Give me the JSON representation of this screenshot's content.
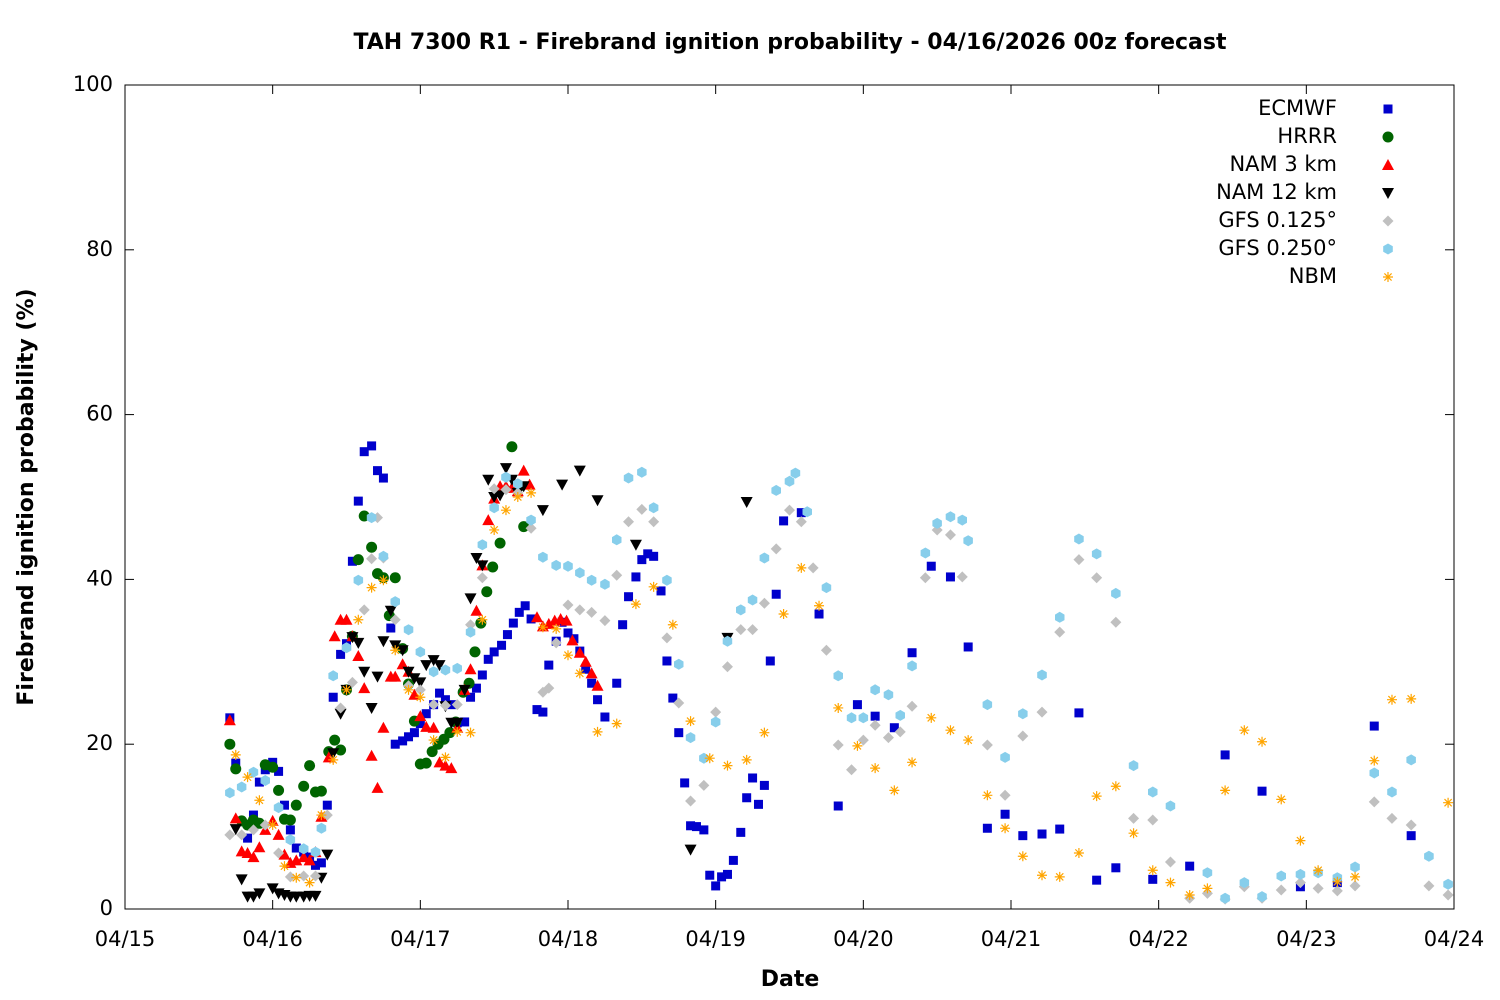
{
  "chart_data": {
    "type": "scatter",
    "title": "TAH 7300 R1 - Firebrand ignition probability - 04/16/2026 00z forecast",
    "x_label": "Date",
    "y_label": "Firebrand ignition probability (%)",
    "xlim": [
      0,
      9
    ],
    "ylim": [
      0,
      100
    ],
    "xticks": [
      {
        "value": 0,
        "label": "04/15"
      },
      {
        "value": 1,
        "label": "04/16"
      },
      {
        "value": 2,
        "label": "04/17"
      },
      {
        "value": 3,
        "label": "04/18"
      },
      {
        "value": 4,
        "label": "04/19"
      },
      {
        "value": 5,
        "label": "04/20"
      },
      {
        "value": 6,
        "label": "04/21"
      },
      {
        "value": 7,
        "label": "04/22"
      },
      {
        "value": 8,
        "label": "04/23"
      },
      {
        "value": 9,
        "label": "04/24"
      }
    ],
    "yticks": [
      0,
      20,
      40,
      60,
      80,
      100
    ],
    "grid": false,
    "legend": "top-right",
    "series": [
      {
        "name": "ECMWF",
        "color": "#0000cc",
        "marker": "square",
        "x": [
          0.71,
          0.75,
          0.83,
          0.87,
          0.91,
          0.95,
          1.0,
          1.04,
          1.08,
          1.12,
          1.16,
          1.21,
          1.25,
          1.29,
          1.33,
          1.37,
          1.41,
          1.46,
          1.5,
          1.54,
          1.58,
          1.62,
          1.67,
          1.71,
          1.75,
          1.8,
          1.83,
          1.88,
          1.92,
          1.96,
          2.0,
          2.04,
          2.09,
          2.13,
          2.17,
          2.21,
          2.25,
          2.3,
          2.34,
          2.38,
          2.42,
          2.46,
          2.5,
          2.55,
          2.59,
          2.63,
          2.67,
          2.71,
          2.75,
          2.79,
          2.83,
          2.87,
          2.92,
          2.96,
          3.0,
          3.04,
          3.08,
          3.12,
          3.16,
          3.2,
          3.25,
          3.33,
          3.37,
          3.41,
          3.46,
          3.5,
          3.54,
          3.58,
          3.63,
          3.67,
          3.71,
          3.75,
          3.79,
          3.83,
          3.87,
          3.92,
          3.96,
          4.0,
          4.04,
          4.08,
          4.12,
          4.17,
          4.21,
          4.25,
          4.29,
          4.33,
          4.37,
          4.41,
          4.46,
          4.58,
          4.7,
          4.83,
          4.96,
          5.08,
          5.21,
          5.33,
          5.46,
          5.59,
          5.71,
          5.84,
          5.96,
          6.08,
          6.21,
          6.33,
          6.46,
          6.58,
          6.71,
          6.96,
          7.21,
          7.45,
          7.7,
          7.96,
          8.21,
          8.46,
          8.71
        ],
        "values": [
          23.2,
          17.7,
          8.6,
          11.4,
          15.4,
          16.9,
          17.8,
          16.7,
          12.6,
          9.6,
          7.4,
          6.9,
          6.3,
          5.3,
          5.6,
          12.6,
          25.7,
          30.9,
          32.2,
          42.2,
          49.5,
          55.5,
          56.2,
          53.2,
          52.3,
          34.1,
          20.0,
          20.4,
          20.9,
          21.4,
          22.5,
          23.7,
          24.8,
          26.2,
          25.4,
          24.8,
          22.6,
          22.7,
          25.7,
          26.8,
          28.4,
          30.3,
          31.2,
          32.0,
          33.3,
          34.7,
          36.0,
          36.8,
          35.2,
          24.2,
          23.9,
          29.6,
          32.5,
          34.8,
          33.5,
          32.8,
          31.3,
          29.1,
          27.4,
          25.4,
          23.3,
          27.4,
          34.5,
          37.9,
          40.3,
          42.4,
          43.1,
          42.8,
          38.6,
          30.1,
          25.6,
          21.4,
          15.3,
          10.1,
          10.0,
          9.6,
          4.1,
          2.8,
          3.9,
          4.2,
          5.9,
          9.3,
          13.5,
          15.9,
          12.7,
          15.0,
          30.1,
          38.2,
          47.1,
          48.1,
          35.8,
          12.5,
          24.8,
          23.4,
          22.0,
          31.1,
          41.6,
          40.3,
          31.8,
          9.8,
          11.5,
          8.9,
          9.1,
          9.7,
          23.8,
          3.5,
          5.0,
          3.6,
          5.2,
          18.7,
          14.3,
          2.7,
          3.2,
          22.2,
          8.9
        ]
      },
      {
        "name": "HRRR",
        "color": "#006400",
        "marker": "circle",
        "x": [
          0.71,
          0.75,
          0.79,
          0.83,
          0.87,
          0.91,
          0.95,
          1.0,
          1.04,
          1.08,
          1.12,
          1.16,
          1.21,
          1.25,
          1.29,
          1.33,
          1.38,
          1.42,
          1.46,
          1.5,
          1.54,
          1.58,
          1.62,
          1.67,
          1.71,
          1.75,
          1.79,
          1.83,
          1.88,
          1.92,
          1.96,
          2.0,
          2.04,
          2.08,
          2.12,
          2.16,
          2.2,
          2.24,
          2.29,
          2.33,
          2.37,
          2.41,
          2.45,
          2.49,
          2.54,
          2.62,
          2.66,
          2.7
        ],
        "values": [
          20.0,
          17.0,
          10.7,
          10.2,
          10.8,
          10.4,
          17.5,
          17.2,
          14.4,
          10.9,
          10.8,
          12.6,
          14.9,
          17.4,
          14.2,
          14.3,
          19.1,
          20.5,
          19.3,
          26.6,
          33.1,
          42.4,
          47.7,
          43.9,
          40.7,
          40.2,
          35.6,
          40.2,
          31.6,
          27.3,
          22.8,
          17.6,
          17.7,
          19.1,
          20.0,
          20.6,
          21.4,
          22.7,
          26.3,
          27.4,
          31.2,
          34.7,
          38.5,
          41.5,
          44.4,
          56.1,
          51.1,
          46.4
        ]
      },
      {
        "name": "NAM 3 km",
        "color": "#ff0000",
        "marker": "triangle",
        "x": [
          0.71,
          0.75,
          0.79,
          0.83,
          0.87,
          0.91,
          0.95,
          1.0,
          1.04,
          1.08,
          1.12,
          1.16,
          1.21,
          1.25,
          1.29,
          1.33,
          1.38,
          1.42,
          1.46,
          1.5,
          1.54,
          1.58,
          1.62,
          1.67,
          1.71,
          1.75,
          1.8,
          1.83,
          1.88,
          1.92,
          1.96,
          2.0,
          2.04,
          2.09,
          2.13,
          2.17,
          2.21,
          2.25,
          2.3,
          2.34,
          2.38,
          2.42,
          2.46,
          2.5,
          2.54,
          2.58,
          2.62,
          2.66,
          2.7,
          2.74,
          2.79,
          2.83,
          2.87,
          2.91,
          2.95,
          2.99,
          3.03,
          3.08,
          3.12,
          3.16,
          3.2
        ],
        "values": [
          22.9,
          11.0,
          7.0,
          6.8,
          6.3,
          7.5,
          9.6,
          10.7,
          9.0,
          6.6,
          5.6,
          5.9,
          6.3,
          5.9,
          6.9,
          11.2,
          18.4,
          33.1,
          35.1,
          35.1,
          33.1,
          30.7,
          26.8,
          18.6,
          14.7,
          22.0,
          28.2,
          28.2,
          29.7,
          28.8,
          26.0,
          23.4,
          22.1,
          22.0,
          17.8,
          17.4,
          17.1,
          22.0,
          26.6,
          29.1,
          36.2,
          41.7,
          47.2,
          49.8,
          51.3,
          51.3,
          51.1,
          50.7,
          53.2,
          51.5,
          35.4,
          34.3,
          34.6,
          35.0,
          35.2,
          35.0,
          32.6,
          31.1,
          30.0,
          28.6,
          27.1
        ]
      },
      {
        "name": "NAM 12 km",
        "color": "#000000",
        "marker": "triangle-down",
        "x": [
          0.75,
          0.79,
          0.83,
          0.87,
          0.91,
          1.0,
          1.04,
          1.08,
          1.12,
          1.16,
          1.21,
          1.25,
          1.29,
          1.33,
          1.37,
          1.41,
          1.46,
          1.5,
          1.54,
          1.58,
          1.62,
          1.67,
          1.71,
          1.75,
          1.8,
          1.83,
          1.88,
          1.92,
          1.96,
          2.0,
          2.04,
          2.09,
          2.13,
          2.17,
          2.21,
          2.25,
          2.3,
          2.34,
          2.38,
          2.42,
          2.46,
          2.5,
          2.54,
          2.58,
          2.62,
          2.66,
          2.7,
          2.83,
          2.96,
          3.08,
          3.2,
          3.46,
          3.83,
          4.08,
          4.21
        ],
        "values": [
          9.7,
          3.6,
          1.5,
          1.5,
          1.9,
          2.5,
          1.9,
          1.7,
          1.5,
          1.5,
          1.5,
          1.6,
          1.6,
          3.8,
          6.6,
          18.9,
          23.7,
          26.6,
          33.0,
          32.3,
          28.8,
          24.4,
          28.2,
          32.5,
          36.2,
          32.0,
          31.4,
          28.8,
          28.0,
          27.5,
          29.6,
          30.2,
          29.6,
          24.6,
          22.6,
          22.6,
          26.6,
          37.7,
          42.6,
          41.7,
          52.1,
          50.0,
          50.2,
          53.5,
          52.1,
          50.5,
          51.3,
          48.4,
          51.5,
          53.2,
          49.6,
          44.2,
          7.2,
          32.9,
          49.4
        ]
      },
      {
        "name": "GFS 0.125°",
        "color": "#c0c0c0",
        "marker": "diamond",
        "x": [
          0.71,
          0.79,
          0.87,
          0.95,
          1.04,
          1.12,
          1.21,
          1.29,
          1.37,
          1.46,
          1.54,
          1.62,
          1.67,
          1.71,
          1.75,
          1.83,
          1.92,
          2.0,
          2.09,
          2.17,
          2.25,
          2.34,
          2.42,
          2.5,
          2.58,
          2.66,
          2.75,
          2.83,
          2.87,
          2.92,
          3.0,
          3.08,
          3.16,
          3.25,
          3.33,
          3.41,
          3.5,
          3.58,
          3.67,
          3.75,
          3.83,
          3.92,
          4.0,
          4.08,
          4.17,
          4.25,
          4.33,
          4.41,
          4.5,
          4.58,
          4.66,
          4.75,
          4.83,
          4.92,
          5.0,
          5.08,
          5.17,
          5.25,
          5.33,
          5.42,
          5.5,
          5.59,
          5.67,
          5.84,
          5.96,
          6.08,
          6.21,
          6.33,
          6.46,
          6.58,
          6.71,
          6.83,
          6.96,
          7.08,
          7.21,
          7.33,
          7.45,
          7.58,
          7.7,
          7.83,
          7.96,
          8.08,
          8.21,
          8.33,
          8.46,
          8.58,
          8.71,
          8.83,
          8.96
        ],
        "values": [
          9.0,
          9.0,
          9.6,
          10.2,
          6.8,
          3.9,
          4.0,
          4.0,
          11.4,
          24.4,
          27.5,
          36.3,
          42.5,
          47.5,
          42.6,
          35.1,
          27.1,
          26.6,
          24.8,
          24.7,
          24.8,
          34.5,
          40.2,
          51.0,
          50.9,
          50.5,
          46.2,
          26.3,
          26.8,
          32.3,
          36.9,
          36.3,
          36.0,
          35.0,
          40.5,
          47.0,
          48.5,
          47.0,
          32.9,
          25.0,
          13.1,
          15.0,
          23.9,
          29.4,
          33.9,
          33.9,
          37.1,
          43.7,
          48.4,
          47.0,
          41.4,
          31.4,
          19.9,
          16.9,
          20.5,
          22.3,
          20.8,
          21.5,
          24.6,
          40.2,
          46.0,
          45.4,
          40.3,
          19.9,
          13.8,
          21.0,
          23.9,
          33.6,
          42.4,
          40.2,
          34.8,
          11.0,
          10.8,
          5.7,
          1.3,
          1.9,
          1.2,
          2.7,
          1.3,
          2.3,
          3.2,
          2.5,
          2.2,
          2.8,
          13.0,
          11.0,
          10.2,
          2.8,
          1.7
        ]
      },
      {
        "name": "GFS 0.250°",
        "color": "#87ceeb",
        "marker": "hexagon",
        "x": [
          0.71,
          0.79,
          0.87,
          0.95,
          1.04,
          1.12,
          1.21,
          1.29,
          1.33,
          1.41,
          1.5,
          1.58,
          1.67,
          1.75,
          1.83,
          1.92,
          2.0,
          2.09,
          2.17,
          2.25,
          2.34,
          2.42,
          2.5,
          2.58,
          2.66,
          2.75,
          2.83,
          2.92,
          3.0,
          3.08,
          3.16,
          3.25,
          3.33,
          3.41,
          3.5,
          3.58,
          3.67,
          3.75,
          3.83,
          3.92,
          4.0,
          4.08,
          4.17,
          4.25,
          4.33,
          4.41,
          4.5,
          4.54,
          4.62,
          4.75,
          4.83,
          4.92,
          5.0,
          5.08,
          5.17,
          5.25,
          5.33,
          5.42,
          5.5,
          5.59,
          5.67,
          5.71,
          5.84,
          5.96,
          6.08,
          6.21,
          6.33,
          6.46,
          6.58,
          6.71,
          6.83,
          6.96,
          7.08,
          7.33,
          7.45,
          7.58,
          7.7,
          7.83,
          7.96,
          8.08,
          8.21,
          8.33,
          8.46,
          8.58,
          8.71,
          8.83,
          8.96
        ],
        "values": [
          14.1,
          14.8,
          16.6,
          15.6,
          12.3,
          8.4,
          7.3,
          6.9,
          9.8,
          28.3,
          31.7,
          39.9,
          47.5,
          42.8,
          37.3,
          33.9,
          31.2,
          28.8,
          29.0,
          29.2,
          33.6,
          44.2,
          48.7,
          52.4,
          51.6,
          47.2,
          42.7,
          41.7,
          41.6,
          40.8,
          39.9,
          39.4,
          44.8,
          52.3,
          53.0,
          48.7,
          39.9,
          29.7,
          20.8,
          18.3,
          22.7,
          32.5,
          36.3,
          37.5,
          42.6,
          50.8,
          51.9,
          52.9,
          48.2,
          39.0,
          28.3,
          23.2,
          23.2,
          26.6,
          26.0,
          23.5,
          29.5,
          43.2,
          46.8,
          47.6,
          47.2,
          44.7,
          24.8,
          18.4,
          23.7,
          28.4,
          35.4,
          44.9,
          43.1,
          38.3,
          17.4,
          14.2,
          12.5,
          4.4,
          1.3,
          3.2,
          1.5,
          4.0,
          4.2,
          4.4,
          3.8,
          5.1,
          16.5,
          14.2,
          18.1,
          6.4,
          3.0
        ]
      },
      {
        "name": "NBM",
        "color": "#ffa500",
        "marker": "asterisk",
        "x": [
          0.75,
          0.83,
          0.91,
          1.0,
          1.08,
          1.16,
          1.25,
          1.33,
          1.41,
          1.5,
          1.58,
          1.67,
          1.75,
          1.83,
          1.92,
          2.0,
          2.09,
          2.17,
          2.25,
          2.34,
          2.42,
          2.5,
          2.58,
          2.66,
          2.75,
          2.83,
          2.92,
          3.0,
          3.08,
          3.2,
          3.33,
          3.46,
          3.58,
          3.71,
          3.83,
          3.96,
          4.08,
          4.21,
          4.33,
          4.46,
          4.58,
          4.7,
          4.83,
          4.96,
          5.08,
          5.21,
          5.33,
          5.46,
          5.59,
          5.71,
          5.84,
          5.96,
          6.08,
          6.21,
          6.33,
          6.46,
          6.58,
          6.71,
          6.83,
          6.96,
          7.08,
          7.21,
          7.33,
          7.45,
          7.58,
          7.7,
          7.83,
          7.96,
          8.08,
          8.21,
          8.33,
          8.46,
          8.58,
          8.71,
          8.96
        ],
        "values": [
          18.7,
          16.0,
          13.2,
          10.2,
          5.2,
          3.8,
          3.2,
          11.4,
          18.1,
          26.6,
          35.1,
          39.0,
          39.9,
          31.4,
          26.6,
          25.7,
          20.5,
          18.4,
          21.5,
          21.4,
          35.1,
          46.0,
          48.4,
          50.0,
          50.5,
          34.2,
          34.0,
          30.8,
          28.6,
          21.5,
          22.5,
          37.0,
          39.1,
          34.5,
          22.8,
          18.3,
          17.4,
          18.1,
          21.4,
          35.8,
          41.4,
          36.8,
          24.4,
          19.8,
          17.1,
          14.4,
          17.8,
          23.2,
          21.7,
          20.5,
          13.8,
          9.8,
          6.4,
          4.1,
          3.9,
          6.8,
          13.7,
          14.9,
          9.2,
          4.7,
          3.2,
          1.7,
          2.5,
          14.4,
          21.7,
          20.3,
          13.3,
          8.3,
          4.7,
          3.3,
          3.9,
          18.0,
          25.4,
          25.5,
          12.9
        ]
      }
    ]
  }
}
